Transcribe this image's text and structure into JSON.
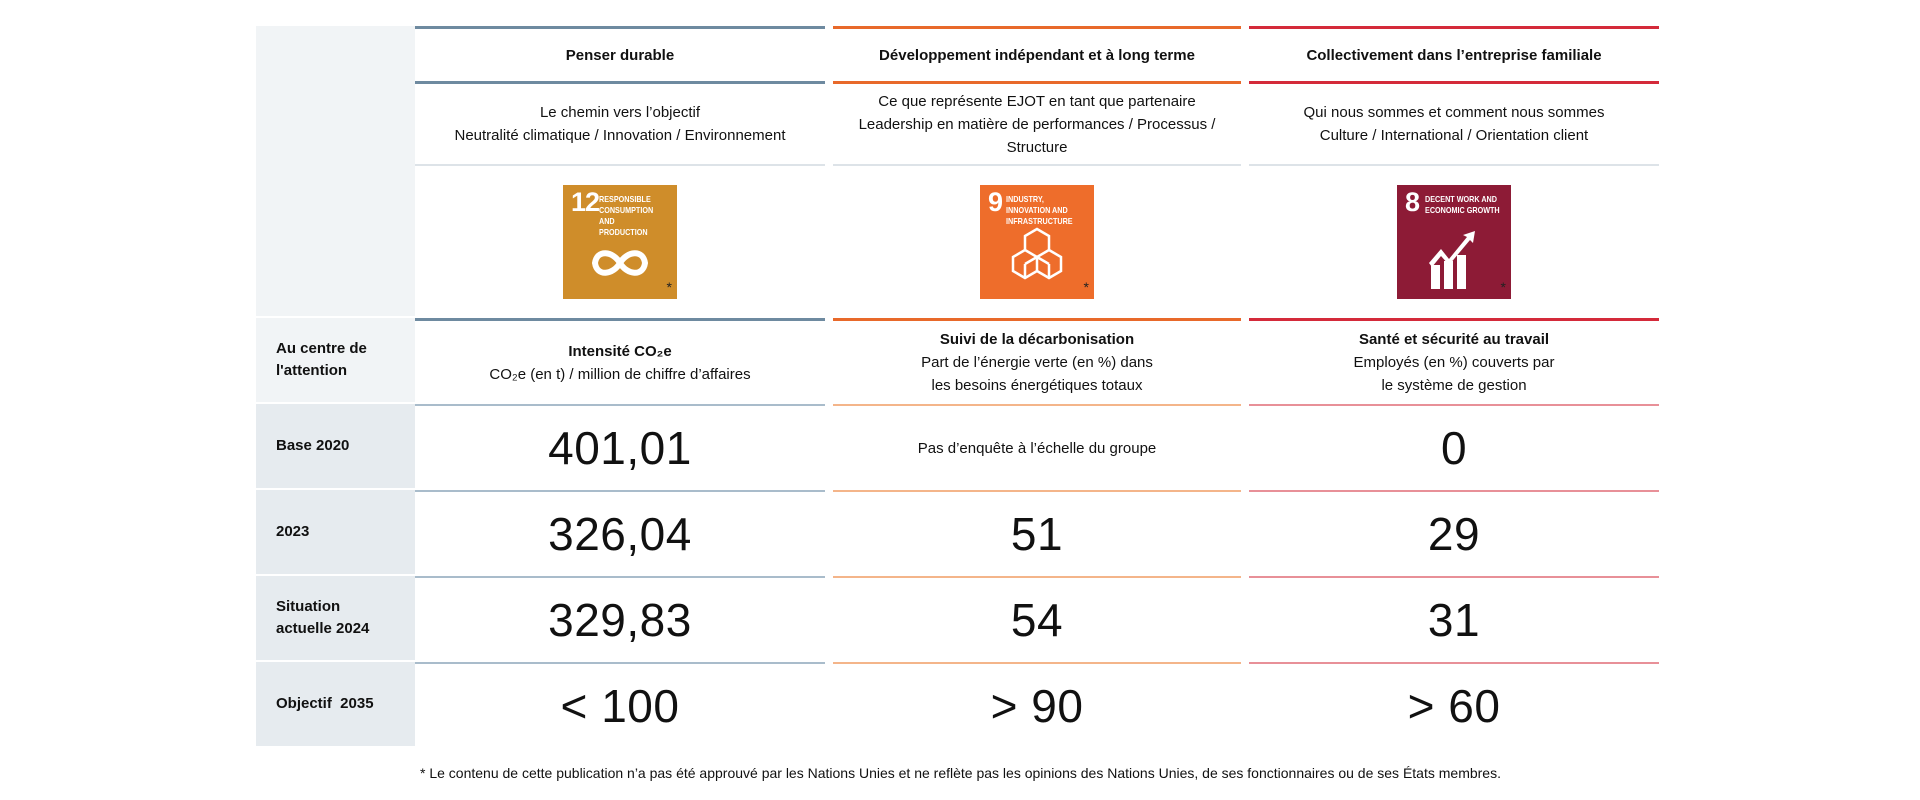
{
  "columns": [
    {
      "title": "Penser durable",
      "subtitle_lines": [
        "Le chemin vers l’objectif",
        "Neutralité climatique / Innovation / Environnement"
      ],
      "sdg": {
        "number": "12",
        "label": "RESPONSIBLE CONSUMPTION AND PRODUCTION",
        "color": "#cf8d2a",
        "icon": "infinity-icon"
      },
      "focus_title": "Intensité CO₂e",
      "focus_desc": "CO₂e (en t) / million de chiffre d’affaires",
      "base_2020": "401,01",
      "y2023": "326,04",
      "y2024": "329,83",
      "objective": "< 100",
      "line_color": "#6e8aa0"
    },
    {
      "title": "Développement indépendant et à long terme",
      "subtitle_lines": [
        "Ce que représente EJOT en tant que partenaire",
        "Leadership en matière de performances / Processus /",
        "Structure"
      ],
      "sdg": {
        "number": "9",
        "label": "INDUSTRY, INNOVATION AND INFRASTRUCTURE",
        "color": "#ee6d2b",
        "icon": "cubes-icon"
      },
      "focus_title": "Suivi de la décarbonisation",
      "focus_desc": "Part de l’énergie verte (en %) dans les besoins énergétiques totaux",
      "base_2020": "Pas d’enquête à l’échelle du groupe",
      "y2023": "51",
      "y2024": "54",
      "objective": "> 90",
      "line_color": "#e8692a"
    },
    {
      "title": "Collectivement dans l’entreprise familiale",
      "subtitle_lines": [
        "Qui nous sommes et comment nous sommes",
        "Culture / International / Orientation client"
      ],
      "sdg": {
        "number": "8",
        "label": "DECENT WORK AND ECONOMIC GROWTH",
        "color": "#8d1b36",
        "icon": "growth-chart-icon"
      },
      "focus_title": "Santé et sécurité au travail",
      "focus_desc": "Employés (en %) couverts par le système de gestion",
      "base_2020": "0",
      "y2023": "29",
      "y2024": "31",
      "objective": "> 60",
      "line_color": "#d42a3a"
    }
  ],
  "row_labels": {
    "focus": "Au centre de l'attention",
    "base": "Base 2020",
    "y2023": "2023",
    "y2024": "Situation actuelle 2024",
    "objective": "Objectif  2035"
  },
  "sdg_asterisk": "*",
  "footnote": "* Le contenu de cette publication n’a pas été approuvé par les Nations Unies et ne reflète pas les opinions des Nations Unies, de ses fonctionnaires ou de ses États membres."
}
